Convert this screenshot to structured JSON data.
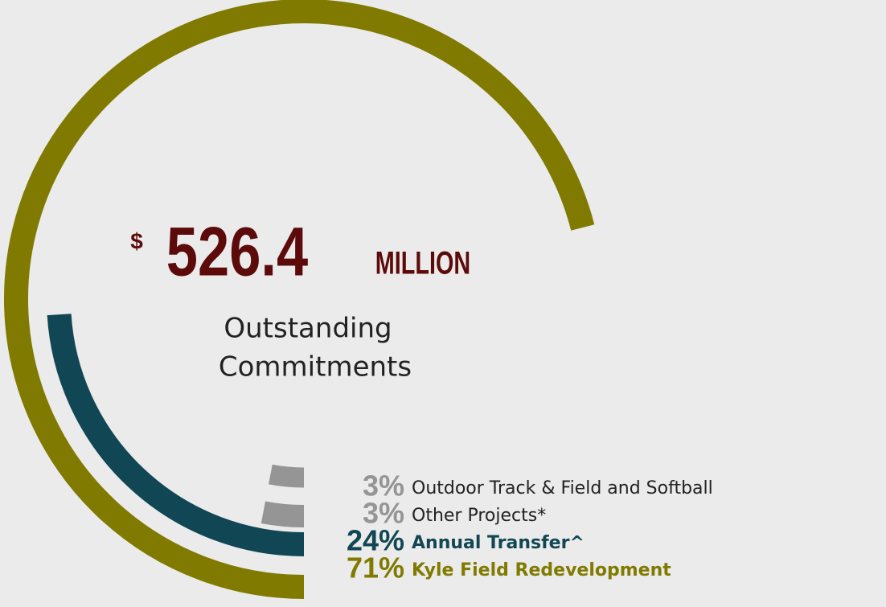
{
  "chart_data": {
    "type": "radial-bar",
    "center": {
      "currency": "$",
      "amount": "526.4",
      "unit": "MILLION",
      "caption": [
        "Outstanding",
        "Commitments"
      ]
    },
    "categories": [
      "Outdoor Track & Field and Softball",
      "Other Projects*",
      "Annual Transfer^",
      "Kyle Field Redevelopment"
    ],
    "values": [
      3,
      3,
      24,
      71
    ],
    "value_labels": [
      "3%",
      "3%",
      "24%",
      "71%"
    ],
    "colors": [
      "#959595",
      "#959595",
      "#114754",
      "#807a00"
    ],
    "max": 100
  }
}
